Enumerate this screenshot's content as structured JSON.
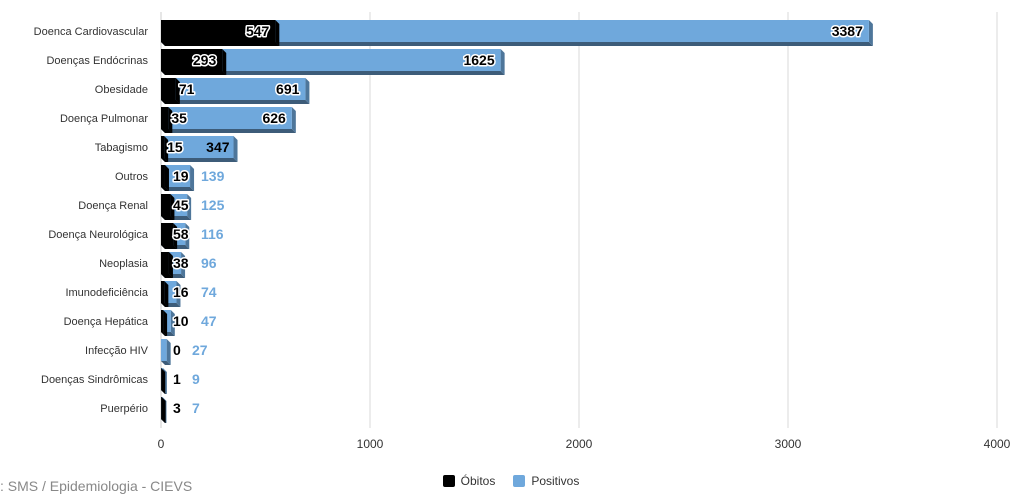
{
  "source_text": ": SMS / Epidemiologia - CIEVS",
  "colors": {
    "obitos": "#000000",
    "positivos": "#6fa8dc",
    "axis": "#cccccc",
    "grid": "#d9d9d9"
  },
  "chart_data": {
    "type": "bar",
    "orientation": "horizontal",
    "stacking": "overlap",
    "categories": [
      "Doenca Cardiovascular",
      "Doenças Endócrinas",
      "Obesidade",
      "Doença Pulmonar",
      "Tabagismo",
      "Outros",
      "Doença Renal",
      "Doença Neurológica",
      "Neoplasia",
      "Imunodeficiência",
      "Doença Hepática",
      "Infecção HIV",
      "Doenças Sindrômicas",
      "Puerpério"
    ],
    "series": [
      {
        "name": "Óbitos",
        "values": [
          547,
          293,
          71,
          35,
          15,
          19,
          45,
          58,
          38,
          16,
          10,
          0,
          1,
          3
        ]
      },
      {
        "name": "Positivos",
        "values": [
          3387,
          1625,
          691,
          626,
          347,
          139,
          125,
          116,
          96,
          74,
          47,
          27,
          9,
          7
        ]
      }
    ],
    "xlim": [
      0,
      4000
    ],
    "xticks": [
      0,
      1000,
      2000,
      3000,
      4000
    ],
    "grid": true,
    "legend_position": "bottom"
  }
}
